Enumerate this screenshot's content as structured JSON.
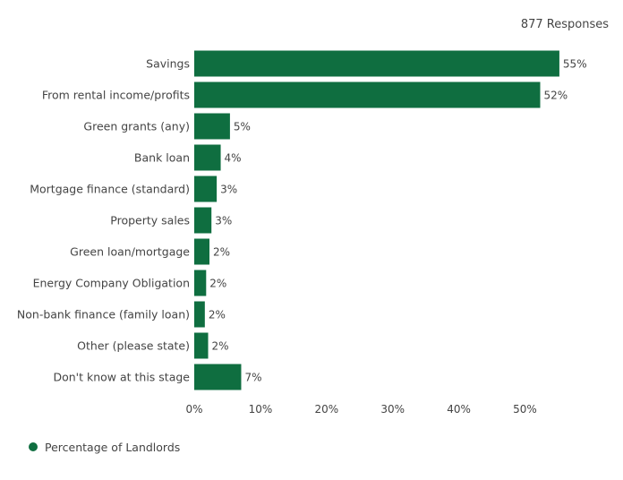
{
  "chart_data": {
    "type": "bar",
    "orientation": "horizontal",
    "subtitle": "877 Responses",
    "categories": [
      "Savings",
      "From rental income/profits",
      "Green grants (any)",
      "Bank loan",
      "Mortgage finance (standard)",
      "Property sales",
      "Green loan/mortgage",
      "Energy Company Obligation",
      "Non-bank finance (family loan)",
      "Other (please state)",
      "Don't know at this stage"
    ],
    "series": [
      {
        "name": "Percentage of Landlords",
        "values": [
          55,
          52,
          5,
          4,
          3,
          3,
          2,
          2,
          2,
          2,
          7
        ],
        "exact_values": [
          55.2,
          52.3,
          5.4,
          4.0,
          3.4,
          2.6,
          2.3,
          1.8,
          1.6,
          2.1,
          7.1
        ],
        "labels": [
          "55%",
          "52%",
          "5%",
          "4%",
          "3%",
          "3%",
          "2%",
          "2%",
          "2%",
          "2%",
          "7%"
        ],
        "color": "#0f6e40"
      }
    ],
    "x_ticks": [
      0,
      10,
      20,
      30,
      40,
      50
    ],
    "x_tick_labels": [
      "0%",
      "10%",
      "20%",
      "30%",
      "40%",
      "50%"
    ],
    "xlim": [
      0,
      62.5
    ],
    "grid": false,
    "legend": "bottom-left"
  }
}
